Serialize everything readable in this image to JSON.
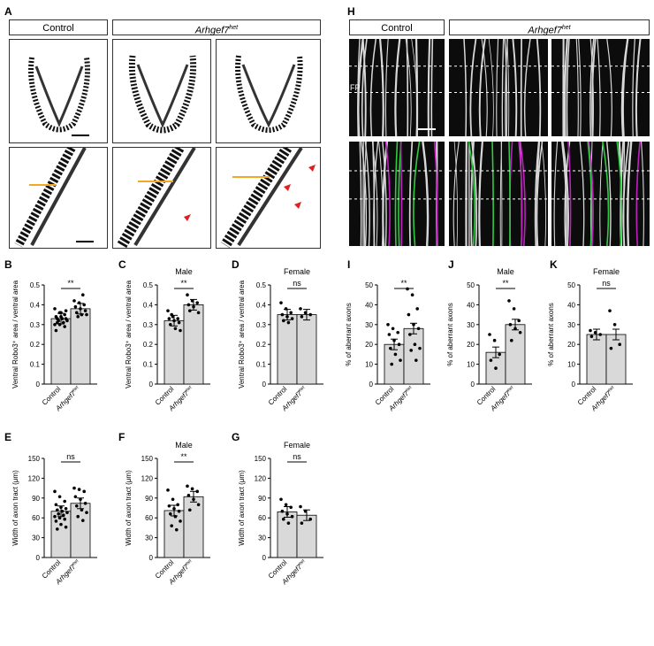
{
  "panels": {
    "A": {
      "letter": "A",
      "left_header": "Control",
      "right_header": "Arhgef7",
      "right_header_sup": "het"
    },
    "H": {
      "letter": "H",
      "left_header": "Control",
      "right_header": "Arhgef7",
      "right_header_sup": "het",
      "fp_label": "FP"
    }
  },
  "chart_data": [
    {
      "panel": "B",
      "type": "bar",
      "subtitle": "",
      "ylabel": "Ventral Robo3⁺ area / ventral area",
      "ylim": [
        0,
        0.5
      ],
      "yticks": [
        "0",
        "0.1",
        "0.2",
        "0.3",
        "0.4",
        "0.5"
      ],
      "categories": [
        "Control",
        "Arhgef7het"
      ],
      "values": [
        0.33,
        0.38
      ],
      "sig": "**"
    },
    {
      "panel": "C",
      "type": "bar",
      "subtitle": "Male",
      "ylabel": "Ventral Robo3⁺ area / ventral area",
      "ylim": [
        0,
        0.5
      ],
      "yticks": [
        "0",
        "0.1",
        "0.2",
        "0.3",
        "0.4",
        "0.5"
      ],
      "categories": [
        "Control",
        "Arhgef7het"
      ],
      "values": [
        0.32,
        0.4
      ],
      "sig": "**"
    },
    {
      "panel": "D",
      "type": "bar",
      "subtitle": "Female",
      "ylabel": "Ventral Robo3⁺ area / ventral area",
      "ylim": [
        0,
        0.5
      ],
      "yticks": [
        "0",
        "0.1",
        "0.2",
        "0.3",
        "0.4",
        "0.5"
      ],
      "categories": [
        "Control",
        "Arhgef7het"
      ],
      "values": [
        0.35,
        0.35
      ],
      "sig": "ns"
    },
    {
      "panel": "E",
      "type": "bar",
      "subtitle": "",
      "ylabel": "Width of axon tract (μm)",
      "ylim": [
        0,
        150
      ],
      "yticks": [
        "0",
        "30",
        "60",
        "90",
        "120",
        "150"
      ],
      "categories": [
        "Control",
        "Arhgef7het"
      ],
      "values": [
        70,
        82
      ],
      "sig": "ns"
    },
    {
      "panel": "F",
      "type": "bar",
      "subtitle": "Male",
      "ylabel": "Width of axon tract (μm)",
      "ylim": [
        0,
        150
      ],
      "yticks": [
        "0",
        "30",
        "60",
        "90",
        "120",
        "150"
      ],
      "categories": [
        "Control",
        "Arhgef7het"
      ],
      "values": [
        71,
        92
      ],
      "sig": "**"
    },
    {
      "panel": "G",
      "type": "bar",
      "subtitle": "Female",
      "ylabel": "Width of axon tract (μm)",
      "ylim": [
        0,
        150
      ],
      "yticks": [
        "0",
        "30",
        "60",
        "90",
        "120",
        "150"
      ],
      "categories": [
        "Control",
        "Arhgef7het"
      ],
      "values": [
        69,
        64
      ],
      "sig": "ns"
    },
    {
      "panel": "I",
      "type": "bar",
      "subtitle": "",
      "ylabel": "% of aberrant axons",
      "ylim": [
        0,
        50
      ],
      "yticks": [
        "0",
        "10",
        "20",
        "30",
        "40",
        "50"
      ],
      "categories": [
        "Control",
        "Arhgef7het"
      ],
      "values": [
        20,
        28
      ],
      "sig": "**"
    },
    {
      "panel": "J",
      "type": "bar",
      "subtitle": "Male",
      "ylabel": "% of aberrant axons",
      "ylim": [
        0,
        50
      ],
      "yticks": [
        "0",
        "10",
        "20",
        "30",
        "40",
        "50"
      ],
      "categories": [
        "Control",
        "Arhgef7het"
      ],
      "values": [
        16,
        30
      ],
      "sig": "**"
    },
    {
      "panel": "K",
      "type": "bar",
      "subtitle": "Female",
      "ylabel": "% of aberrant axons",
      "ylim": [
        0,
        50
      ],
      "yticks": [
        "0",
        "10",
        "20",
        "30",
        "40",
        "50"
      ],
      "categories": [
        "Control",
        "Arhgef7het"
      ],
      "values": [
        25,
        25
      ],
      "sig": "ns"
    }
  ],
  "points": {
    "B": [
      [
        0.38,
        0.36,
        0.35,
        0.34,
        0.34,
        0.33,
        0.33,
        0.33,
        0.32,
        0.32,
        0.31,
        0.3,
        0.3,
        0.29,
        0.27,
        0.36,
        0.37,
        0.31
      ],
      [
        0.42,
        0.41,
        0.4,
        0.39,
        0.38,
        0.37,
        0.36,
        0.35,
        0.35,
        0.34,
        0.45
      ]
    ],
    "C": [
      [
        0.37,
        0.34,
        0.33,
        0.33,
        0.32,
        0.31,
        0.3,
        0.28,
        0.27,
        0.35
      ],
      [
        0.45,
        0.42,
        0.41,
        0.4,
        0.39,
        0.36,
        0.37
      ]
    ],
    "D": [
      [
        0.41,
        0.38,
        0.36,
        0.35,
        0.34,
        0.33,
        0.32,
        0.31
      ],
      [
        0.38,
        0.36,
        0.35,
        0.34
      ]
    ],
    "E": [
      [
        100,
        92,
        85,
        80,
        76,
        74,
        72,
        70,
        68,
        66,
        64,
        62,
        60,
        58,
        55,
        50,
        46,
        43
      ],
      [
        105,
        103,
        100,
        92,
        88,
        82,
        78,
        72,
        68,
        62,
        56
      ]
    ],
    "F": [
      [
        102,
        88,
        80,
        78,
        74,
        70,
        66,
        62,
        55,
        48,
        42
      ],
      [
        108,
        104,
        100,
        94,
        88,
        80,
        72
      ]
    ],
    "G": [
      [
        88,
        80,
        76,
        70,
        66,
        62,
        58,
        52
      ],
      [
        77,
        70,
        58,
        52
      ]
    ],
    "I": [
      [
        30,
        28,
        26,
        25,
        22,
        20,
        18,
        15,
        12,
        10
      ],
      [
        48,
        45,
        38,
        35,
        30,
        28,
        25,
        20,
        18,
        17,
        12
      ]
    ],
    "J": [
      [
        25,
        22,
        15,
        12,
        8
      ],
      [
        42,
        38,
        32,
        30,
        28,
        26,
        22
      ]
    ],
    "K": [
      [
        27,
        26,
        25,
        24
      ],
      [
        37,
        30,
        20,
        18
      ]
    ]
  }
}
